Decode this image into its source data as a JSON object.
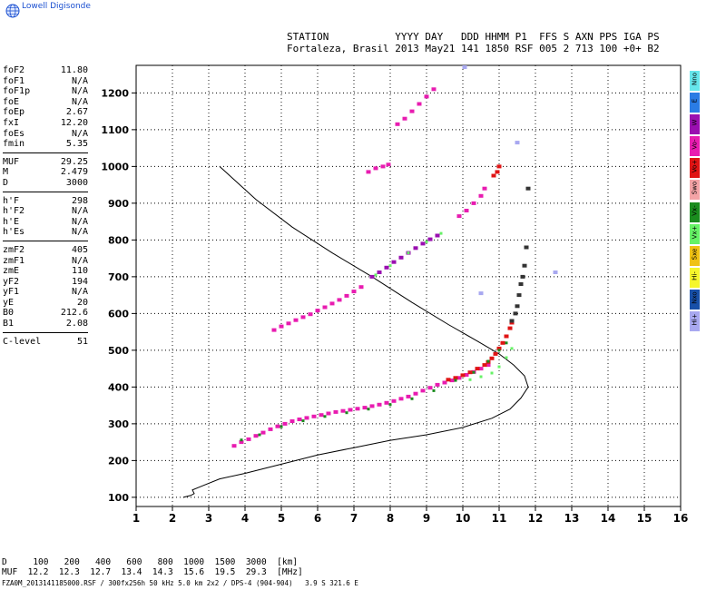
{
  "brand": "Lowell Digisonde",
  "header": {
    "line1": "STATION           YYYY DAY   DDD HHMM P1  FFS S AXN PPS IGA PS",
    "line2": "Fortaleza, Brasil 2013 May21 141 1850 RSF 005 2 713 100 +0+ B2"
  },
  "params": [
    {
      "name": "foF2",
      "value": "11.80"
    },
    {
      "name": "foF1",
      "value": "N/A"
    },
    {
      "name": "foF1p",
      "value": "N/A"
    },
    {
      "name": "foE",
      "value": "N/A"
    },
    {
      "name": "foEp",
      "value": "2.67"
    },
    {
      "name": "fxI",
      "value": "12.20"
    },
    {
      "name": "foEs",
      "value": "N/A"
    },
    {
      "name": "fmin",
      "value": "5.35"
    },
    {
      "sep": true
    },
    {
      "name": "MUF",
      "value": "29.25"
    },
    {
      "name": "M",
      "value": "2.479"
    },
    {
      "name": "D",
      "value": "3000"
    },
    {
      "sep": true
    },
    {
      "name": "h'F",
      "value": "298"
    },
    {
      "name": "h'F2",
      "value": "N/A"
    },
    {
      "name": "h'E",
      "value": "N/A"
    },
    {
      "name": "h'Es",
      "value": "N/A"
    },
    {
      "sep": true
    },
    {
      "name": "zmF2",
      "value": "405"
    },
    {
      "name": "zmF1",
      "value": "N/A"
    },
    {
      "name": "zmE",
      "value": "110"
    },
    {
      "name": "yF2",
      "value": "194"
    },
    {
      "name": "yF1",
      "value": "N/A"
    },
    {
      "name": "yE",
      "value": "20"
    },
    {
      "name": "B0",
      "value": "212.6"
    },
    {
      "name": "B1",
      "value": "2.08"
    },
    {
      "sep": true
    },
    {
      "name": "C-level",
      "value": "51"
    }
  ],
  "legend": [
    {
      "label": "Nno",
      "color": "#66e6ec"
    },
    {
      "label": "E",
      "color": "#2a7ce4"
    },
    {
      "label": "W",
      "color": "#9a0fb0"
    },
    {
      "label": "Vo-",
      "color": "#e81cb0"
    },
    {
      "label": "Vo+",
      "color": "#e01414"
    },
    {
      "label": "Swo",
      "color": "#f4a3a6"
    },
    {
      "label": "Vx-",
      "color": "#1a8c1e"
    },
    {
      "label": "Vx+",
      "color": "#66f266"
    },
    {
      "label": "Sxe",
      "color": "#f0c214"
    },
    {
      "label": "Hi-",
      "color": "#f6f62c"
    },
    {
      "label": "Nxo",
      "color": "#1850a8"
    },
    {
      "label": "Hi+",
      "color": "#a8a8f0"
    }
  ],
  "chart_data": {
    "type": "scatter",
    "xlim": [
      1,
      16
    ],
    "ylim": [
      75,
      1275
    ],
    "x_ticks": [
      1,
      2,
      3,
      4,
      5,
      6,
      7,
      8,
      9,
      10,
      11,
      12,
      13,
      14,
      15,
      16
    ],
    "y_ticks": [
      100,
      200,
      300,
      400,
      500,
      600,
      700,
      800,
      900,
      1000,
      1100,
      1200
    ],
    "grid": true,
    "series": [
      {
        "mode": "O",
        "color": "#e81cb0",
        "x": [
          3.7,
          3.9,
          4.1,
          4.3,
          4.5,
          4.7,
          4.9,
          5.1,
          5.3,
          5.5,
          5.7,
          5.9,
          6.1,
          6.3,
          6.5,
          6.7,
          6.9,
          7.1,
          7.3,
          7.5,
          7.7,
          7.9,
          8.1,
          8.3,
          8.5,
          8.7,
          8.9,
          9.1,
          9.3,
          9.5,
          9.7,
          9.9,
          10.1,
          10.3,
          10.5,
          10.7
        ],
        "y": [
          240,
          250,
          258,
          267,
          276,
          285,
          293,
          300,
          307,
          312,
          316,
          320,
          324,
          328,
          332,
          335,
          338,
          341,
          344,
          348,
          352,
          357,
          362,
          368,
          374,
          382,
          390,
          398,
          406,
          412,
          418,
          425,
          433,
          441,
          450,
          460
        ]
      },
      {
        "mode": "O",
        "color": "#e01414",
        "x": [
          9.6,
          9.8,
          10.0,
          10.2,
          10.4,
          10.6,
          10.7,
          10.8,
          10.9,
          11.0,
          11.1,
          11.2,
          11.3,
          11.35
        ],
        "y": [
          420,
          425,
          432,
          440,
          450,
          460,
          468,
          478,
          490,
          505,
          520,
          538,
          560,
          575
        ]
      },
      {
        "mode": "X",
        "color": "#1a8c1e",
        "x": [
          3.9,
          4.4,
          5.0,
          5.6,
          6.2,
          6.8,
          7.4,
          8.0,
          8.6,
          9.2,
          9.8,
          10.3,
          10.7,
          11.0,
          11.2
        ],
        "y": [
          256,
          270,
          292,
          308,
          320,
          330,
          340,
          352,
          368,
          390,
          418,
          440,
          470,
          500,
          520
        ]
      },
      {
        "mode": "X",
        "color": "#66f266",
        "x": [
          10.2,
          10.5,
          10.8,
          11.0,
          11.2,
          11.35
        ],
        "y": [
          420,
          428,
          438,
          455,
          480,
          505
        ]
      },
      {
        "mode": "O",
        "color": "#e81cb0",
        "x": [
          4.8,
          5.0,
          5.2,
          5.4,
          5.6,
          5.8,
          6.0,
          6.2,
          6.4,
          6.6,
          6.8,
          7.0,
          7.2
        ],
        "y": [
          555,
          565,
          573,
          582,
          590,
          598,
          608,
          617,
          627,
          637,
          648,
          660,
          672
        ]
      },
      {
        "mode": "O",
        "color": "#9a0fb0",
        "x": [
          7.5,
          7.7,
          7.9,
          8.1,
          8.3,
          8.5,
          8.7,
          8.9,
          9.1,
          9.3
        ],
        "y": [
          700,
          712,
          725,
          740,
          752,
          765,
          778,
          790,
          802,
          812
        ]
      },
      {
        "mode": "X",
        "color": "#66f266",
        "x": [
          7.6,
          8.0,
          8.5,
          9.0,
          9.4
        ],
        "y": [
          705,
          730,
          765,
          795,
          818
        ]
      },
      {
        "mode": "O",
        "color": "#e81cb0",
        "x": [
          9.9,
          10.1,
          10.3,
          10.5,
          10.6
        ],
        "y": [
          865,
          880,
          900,
          920,
          940
        ]
      },
      {
        "mode": "O",
        "color": "#e81cb0",
        "x": [
          7.4,
          7.6,
          7.8,
          7.95
        ],
        "y": [
          985,
          995,
          1000,
          1005
        ]
      },
      {
        "mode": "O",
        "color": "#e81cb0",
        "x": [
          8.2,
          8.4,
          8.6,
          8.8,
          9.0,
          9.2
        ],
        "y": [
          1115,
          1130,
          1150,
          1170,
          1190,
          1210
        ]
      },
      {
        "mode": "O",
        "color": "#e01414",
        "x": [
          10.85,
          10.95,
          11.0
        ],
        "y": [
          975,
          985,
          1000
        ]
      },
      {
        "mode": "O",
        "color": "#333333",
        "x": [
          11.35,
          11.45,
          11.5,
          11.55,
          11.6,
          11.65,
          11.7,
          11.75,
          11.8
        ],
        "y": [
          580,
          600,
          620,
          650,
          680,
          700,
          730,
          780,
          940
        ]
      },
      {
        "mode": "O",
        "color": "#a8a8f0",
        "x": [
          11.5,
          12.55,
          10.5,
          10.05
        ],
        "y": [
          1065,
          712,
          655,
          1270
        ]
      }
    ],
    "profile": {
      "name": "",
      "color": "#000000",
      "x": [
        2.3,
        2.5,
        2.6,
        2.55,
        2.8,
        3.3,
        4.0,
        5.0,
        6.0,
        7.0,
        8.0,
        9.0,
        10.0,
        10.8,
        11.3,
        11.6,
        11.8,
        11.7,
        11.4,
        11.0,
        10.4,
        9.6,
        8.6,
        7.5,
        6.4,
        5.3,
        4.3,
        3.3
      ],
      "y": [
        100,
        105,
        110,
        120,
        130,
        150,
        165,
        190,
        215,
        235,
        255,
        270,
        290,
        315,
        340,
        370,
        400,
        430,
        460,
        490,
        525,
        570,
        630,
        700,
        765,
        835,
        910,
        1000
      ]
    }
  },
  "footer": {
    "d_line": "D     100   200   400   600   800  1000  1500  3000  [km]",
    "muf_line": "MUF  12.2  12.3  12.7  13.4  14.3  15.6  19.5  29.3  [MHz]",
    "file_line": "FZA0M_2013141185000.RSF / 300fx256h 50 kHz 5.0 km 2x2 / DPS-4 (904-904)   3.9 S 321.6 E"
  }
}
